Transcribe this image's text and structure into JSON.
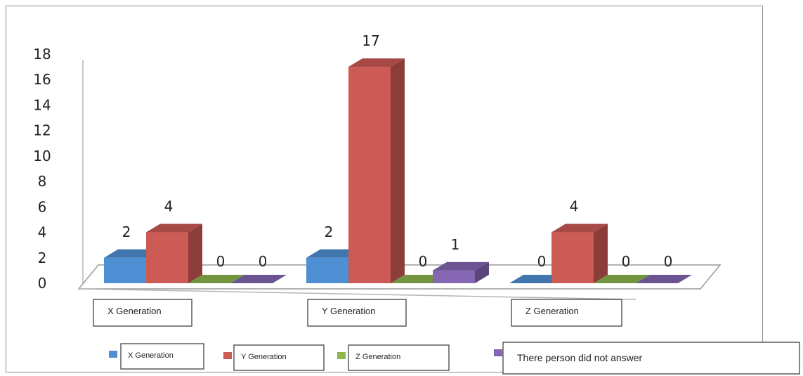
{
  "chart_data": {
    "type": "bar",
    "style": "3d-clustered-column",
    "categories": [
      "X Generation",
      "Y Generation",
      "Z Generation"
    ],
    "series": [
      {
        "name": "X Generation",
        "color": "#4f8fd4",
        "values": [
          2,
          2,
          0
        ]
      },
      {
        "name": "Y Generation",
        "color": "#cc5a55",
        "values": [
          4,
          17,
          4
        ]
      },
      {
        "name": "Z Generation",
        "color": "#8db64e",
        "values": [
          0,
          0,
          0
        ]
      },
      {
        "name": "There person did not answer",
        "color": "#8466b3",
        "values": [
          0,
          1,
          0
        ]
      }
    ],
    "yticks": [
      "0",
      "2",
      "4",
      "6",
      "8",
      "10",
      "12",
      "14",
      "16",
      "18"
    ],
    "ylim": [
      0,
      18
    ],
    "grid": false,
    "legend_position": "bottom"
  }
}
